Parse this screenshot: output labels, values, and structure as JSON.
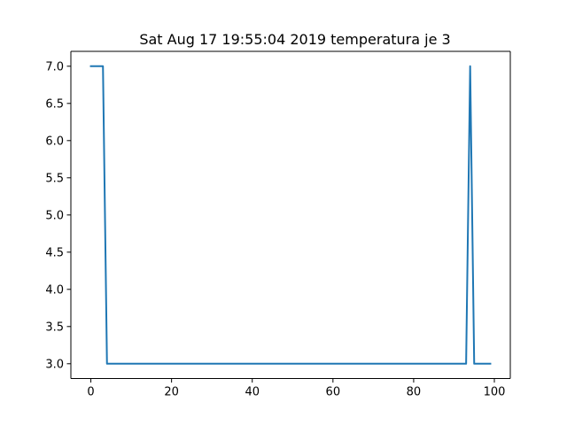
{
  "chart_data": {
    "type": "line",
    "title": "Sat Aug 17 19:55:04 2019 temperatura je 3",
    "xlabel": "",
    "ylabel": "",
    "xlim": [
      -4.95,
      103.95
    ],
    "ylim": [
      2.8,
      7.2
    ],
    "xticks": [
      0,
      20,
      40,
      60,
      80,
      100
    ],
    "xtick_labels": [
      "0",
      "20",
      "40",
      "60",
      "80",
      "100"
    ],
    "yticks": [
      3.0,
      3.5,
      4.0,
      4.5,
      5.0,
      5.5,
      6.0,
      6.5,
      7.0
    ],
    "ytick_labels": [
      "3.0",
      "3.5",
      "4.0",
      "4.5",
      "5.0",
      "5.5",
      "6.0",
      "6.5",
      "7.0"
    ],
    "grid": false,
    "legend": "none",
    "series": [
      {
        "color": "#1f77b4",
        "points": [
          [
            0,
            7
          ],
          [
            1,
            7
          ],
          [
            2,
            7
          ],
          [
            3,
            7
          ],
          [
            4,
            3
          ],
          [
            93,
            3
          ],
          [
            94,
            7
          ],
          [
            95,
            3
          ],
          [
            96,
            3
          ],
          [
            97,
            3
          ],
          [
            98,
            3
          ],
          [
            99,
            3
          ]
        ]
      }
    ]
  }
}
